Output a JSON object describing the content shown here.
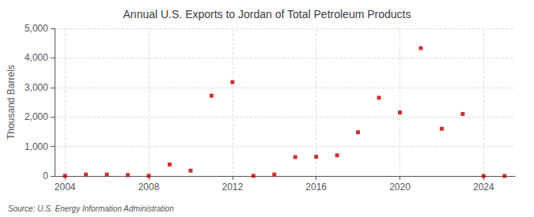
{
  "chart_data": {
    "type": "scatter",
    "title": "Annual U.S. Exports to Jordan of Total Petroleum Products",
    "ylabel": "Thousand Barrels",
    "source": "Source: U.S. Energy Information Administration",
    "x": [
      2004,
      2005,
      2006,
      2007,
      2008,
      2009,
      2010,
      2011,
      2012,
      2013,
      2014,
      2015,
      2016,
      2017,
      2018,
      2019,
      2020,
      2021,
      2022,
      2023,
      2024,
      2025
    ],
    "values": [
      5,
      50,
      50,
      30,
      5,
      390,
      180,
      2720,
      3180,
      5,
      50,
      640,
      650,
      700,
      1480,
      2650,
      2150,
      4330,
      1600,
      2100,
      0,
      0
    ],
    "color": "#c00000",
    "marker": "square",
    "xlim": [
      2003.5,
      2025.5
    ],
    "xticks": [
      2004,
      2008,
      2012,
      2016,
      2020,
      2024
    ],
    "ylim": [
      0,
      5000
    ],
    "yticks": [
      0,
      {
        "value": 1000,
        "label": "1,000"
      },
      {
        "value": 2000,
        "label": "2,000"
      },
      {
        "value": 3000,
        "label": "3,000"
      },
      {
        "value": 4000,
        "label": "4,000"
      },
      {
        "value": 5000,
        "label": "5,000"
      }
    ],
    "grid": true
  }
}
